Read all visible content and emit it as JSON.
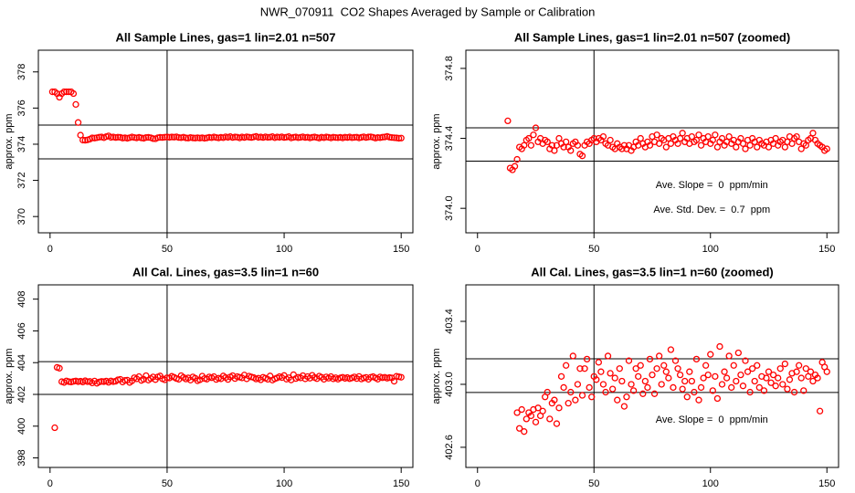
{
  "title": "NWR_070911  CO2 Shapes Averaged by Sample or Calibration",
  "chart_data": [
    {
      "type": "scatter",
      "title": "All Sample Lines, gas=1 lin=2.01 n=507",
      "ylabel": "approx. ppm",
      "color": "#ff0000",
      "xlim": [
        -5,
        155
      ],
      "ylim": [
        369.1,
        379.2
      ],
      "xticks": [
        0,
        50,
        100,
        150
      ],
      "yticks": [
        370,
        372,
        374,
        376,
        378
      ],
      "hlines": [
        375.06,
        373.19
      ],
      "vlines": [
        50
      ],
      "x": [
        1,
        2,
        3,
        4,
        5,
        6,
        7,
        8,
        9,
        10,
        11,
        12,
        13,
        14,
        15,
        16,
        17,
        18,
        19,
        20,
        21,
        22,
        23,
        24,
        25,
        26,
        27,
        28,
        29,
        30,
        31,
        32,
        33,
        34,
        35,
        36,
        37,
        38,
        39,
        40,
        41,
        42,
        43,
        44,
        45,
        46,
        47,
        48,
        49,
        50,
        51,
        52,
        53,
        54,
        55,
        56,
        57,
        58,
        59,
        60,
        61,
        62,
        63,
        64,
        65,
        66,
        67,
        68,
        69,
        70,
        71,
        72,
        73,
        74,
        75,
        76,
        77,
        78,
        79,
        80,
        81,
        82,
        83,
        84,
        85,
        86,
        87,
        88,
        89,
        90,
        91,
        92,
        93,
        94,
        95,
        96,
        97,
        98,
        99,
        100,
        101,
        102,
        103,
        104,
        105,
        106,
        107,
        108,
        109,
        110,
        111,
        112,
        113,
        114,
        115,
        116,
        117,
        118,
        119,
        120,
        121,
        122,
        123,
        124,
        125,
        126,
        127,
        128,
        129,
        130,
        131,
        132,
        133,
        134,
        135,
        136,
        137,
        138,
        139,
        140,
        141,
        142,
        143,
        144,
        145,
        146,
        147,
        148,
        149,
        150
      ],
      "values": [
        376.9,
        376.9,
        376.8,
        376.6,
        376.8,
        376.9,
        376.9,
        376.9,
        376.9,
        376.8,
        376.2,
        375.2,
        374.5,
        374.23,
        374.22,
        374.24,
        374.28,
        374.35,
        374.34,
        374.36,
        374.39,
        374.4,
        374.36,
        374.42,
        374.46,
        374.38,
        374.4,
        374.37,
        374.39,
        374.38,
        374.34,
        374.36,
        374.33,
        374.36,
        374.4,
        374.37,
        374.35,
        374.38,
        374.35,
        374.33,
        374.37,
        374.38,
        374.36,
        374.31,
        374.3,
        374.36,
        374.38,
        374.37,
        374.39,
        374.4,
        374.38,
        374.4,
        374.39,
        374.41,
        374.37,
        374.36,
        374.39,
        374.35,
        374.34,
        374.37,
        374.35,
        374.34,
        374.36,
        374.34,
        374.36,
        374.33,
        374.35,
        374.38,
        374.36,
        374.4,
        374.37,
        374.35,
        374.38,
        374.36,
        374.41,
        374.38,
        374.42,
        374.37,
        374.4,
        374.39,
        374.35,
        374.4,
        374.37,
        374.41,
        374.39,
        374.37,
        374.4,
        374.43,
        374.38,
        374.4,
        374.37,
        374.41,
        374.38,
        374.39,
        374.42,
        374.36,
        374.4,
        374.38,
        374.41,
        374.37,
        374.39,
        374.42,
        374.35,
        374.38,
        374.4,
        374.36,
        374.38,
        374.41,
        374.37,
        374.39,
        374.35,
        374.38,
        374.4,
        374.37,
        374.34,
        374.39,
        374.36,
        374.4,
        374.38,
        374.35,
        374.39,
        374.37,
        374.36,
        374.38,
        374.35,
        374.39,
        374.37,
        374.4,
        374.36,
        374.38,
        374.39,
        374.35,
        374.38,
        374.41,
        374.37,
        374.4,
        374.41,
        374.38,
        374.34,
        374.37,
        374.36,
        374.39,
        374.4,
        374.43,
        374.39,
        374.37,
        374.36,
        374.35,
        374.33,
        374.34
      ]
    },
    {
      "type": "scatter",
      "title": "All Sample Lines, gas=1 lin=2.01 n=507 (zoomed)",
      "ylabel": "approx. ppm",
      "color": "#ff0000",
      "xlim": [
        -5,
        155
      ],
      "ylim": [
        373.86,
        374.904
      ],
      "xticks": [
        0,
        50,
        100,
        150
      ],
      "yticks": [
        {
          "value": 374,
          "label": "374.0"
        },
        374.4,
        374.8
      ],
      "hlines": [
        374.46,
        374.27
      ],
      "vlines": [
        50
      ],
      "annotations": [
        "Ave. Slope =  0  ppm/min",
        "Ave. Std. Dev. =  0.7  ppm"
      ],
      "x": [
        13,
        14,
        15,
        16,
        17,
        18,
        19,
        20,
        21,
        22,
        23,
        24,
        25,
        26,
        27,
        28,
        29,
        30,
        31,
        32,
        33,
        34,
        35,
        36,
        37,
        38,
        39,
        40,
        41,
        42,
        43,
        44,
        45,
        46,
        47,
        48,
        49,
        50,
        51,
        52,
        53,
        54,
        55,
        56,
        57,
        58,
        59,
        60,
        61,
        62,
        63,
        64,
        65,
        66,
        67,
        68,
        69,
        70,
        71,
        72,
        73,
        74,
        75,
        76,
        77,
        78,
        79,
        80,
        81,
        82,
        83,
        84,
        85,
        86,
        87,
        88,
        89,
        90,
        91,
        92,
        93,
        94,
        95,
        96,
        97,
        98,
        99,
        100,
        101,
        102,
        103,
        104,
        105,
        106,
        107,
        108,
        109,
        110,
        111,
        112,
        113,
        114,
        115,
        116,
        117,
        118,
        119,
        120,
        121,
        122,
        123,
        124,
        125,
        126,
        127,
        128,
        129,
        130,
        131,
        132,
        133,
        134,
        135,
        136,
        137,
        138,
        139,
        140,
        141,
        142,
        143,
        144,
        145,
        146,
        147,
        148,
        149,
        150
      ],
      "values": [
        374.5,
        374.23,
        374.22,
        374.24,
        374.28,
        374.35,
        374.34,
        374.36,
        374.39,
        374.4,
        374.36,
        374.42,
        374.46,
        374.38,
        374.4,
        374.37,
        374.39,
        374.38,
        374.34,
        374.36,
        374.33,
        374.36,
        374.4,
        374.37,
        374.35,
        374.38,
        374.35,
        374.33,
        374.37,
        374.38,
        374.36,
        374.31,
        374.3,
        374.36,
        374.38,
        374.37,
        374.39,
        374.4,
        374.38,
        374.4,
        374.39,
        374.41,
        374.37,
        374.36,
        374.39,
        374.35,
        374.34,
        374.37,
        374.35,
        374.34,
        374.36,
        374.34,
        374.36,
        374.33,
        374.35,
        374.38,
        374.36,
        374.4,
        374.37,
        374.35,
        374.38,
        374.36,
        374.41,
        374.38,
        374.42,
        374.37,
        374.4,
        374.39,
        374.35,
        374.4,
        374.37,
        374.41,
        374.39,
        374.37,
        374.4,
        374.43,
        374.38,
        374.4,
        374.37,
        374.41,
        374.38,
        374.39,
        374.42,
        374.36,
        374.4,
        374.38,
        374.41,
        374.37,
        374.39,
        374.42,
        374.35,
        374.38,
        374.4,
        374.36,
        374.38,
        374.41,
        374.37,
        374.39,
        374.35,
        374.38,
        374.4,
        374.37,
        374.34,
        374.39,
        374.36,
        374.4,
        374.38,
        374.35,
        374.39,
        374.37,
        374.36,
        374.38,
        374.35,
        374.39,
        374.37,
        374.4,
        374.36,
        374.38,
        374.39,
        374.35,
        374.38,
        374.41,
        374.37,
        374.4,
        374.41,
        374.38,
        374.34,
        374.37,
        374.36,
        374.39,
        374.4,
        374.43,
        374.39,
        374.37,
        374.36,
        374.35,
        374.33,
        374.34
      ]
    },
    {
      "type": "scatter",
      "title": "All Cal. Lines, gas=3.5 lin=1 n=60",
      "ylabel": "approx. ppm",
      "color": "#ff0000",
      "xlim": [
        -5,
        155
      ],
      "ylim": [
        397.4,
        408.9
      ],
      "xticks": [
        0,
        50,
        100,
        150
      ],
      "yticks": [
        398,
        400,
        402,
        404,
        406,
        408
      ],
      "hlines": [
        404.06,
        402.0
      ],
      "vlines": [
        50
      ],
      "x": [
        2,
        3,
        4,
        5,
        6,
        7,
        8,
        9,
        10,
        11,
        12,
        13,
        14,
        15,
        16,
        17,
        18,
        19,
        20,
        21,
        22,
        23,
        24,
        25,
        26,
        27,
        28,
        29,
        30,
        31,
        32,
        33,
        34,
        35,
        36,
        37,
        38,
        39,
        40,
        41,
        42,
        43,
        44,
        45,
        46,
        47,
        48,
        49,
        50,
        51,
        52,
        53,
        54,
        55,
        56,
        57,
        58,
        59,
        60,
        61,
        62,
        63,
        64,
        65,
        66,
        67,
        68,
        69,
        70,
        71,
        72,
        73,
        74,
        75,
        76,
        77,
        78,
        79,
        80,
        81,
        82,
        83,
        84,
        85,
        86,
        87,
        88,
        89,
        90,
        91,
        92,
        93,
        94,
        95,
        96,
        97,
        98,
        99,
        100,
        101,
        102,
        103,
        104,
        105,
        106,
        107,
        108,
        109,
        110,
        111,
        112,
        113,
        114,
        115,
        116,
        117,
        118,
        119,
        120,
        121,
        122,
        123,
        124,
        125,
        126,
        127,
        128,
        129,
        130,
        131,
        132,
        133,
        134,
        135,
        136,
        137,
        138,
        139,
        140,
        141,
        142,
        143,
        144,
        145,
        146,
        147,
        148,
        149,
        150
      ],
      "values": [
        399.9,
        403.7,
        403.65,
        402.8,
        402.75,
        402.85,
        402.8,
        402.78,
        402.82,
        402.85,
        402.8,
        402.83,
        402.78,
        402.86,
        402.8,
        402.82,
        402.72,
        402.84,
        402.7,
        402.78,
        402.82,
        402.8,
        402.84,
        402.76,
        402.85,
        402.8,
        402.83,
        402.92,
        402.95,
        402.78,
        402.88,
        402.9,
        402.75,
        402.85,
        403.05,
        402.98,
        403.12,
        402.88,
        402.95,
        403.18,
        402.9,
        403.0,
        403.1,
        402.93,
        403.1,
        403.16,
        402.98,
        402.92,
        403.05,
        403.03,
        403.14,
        403.08,
        403.0,
        402.95,
        403.18,
        403.07,
        402.97,
        403.04,
        402.9,
        403.1,
        403.02,
        402.86,
        402.92,
        403.15,
        403.0,
        402.96,
        403.1,
        403.05,
        403.12,
        402.94,
        403.02,
        402.98,
        403.16,
        403.06,
        402.94,
        403.1,
        403.18,
        403.0,
        403.12,
        403.08,
        403.04,
        403.22,
        402.98,
        403.15,
        403.1,
        403.06,
        402.97,
        403.02,
        402.92,
        403.08,
        403.02,
        402.95,
        403.16,
        402.9,
        402.98,
        403.04,
        403.12,
        403.06,
        403.19,
        402.96,
        403.05,
        402.91,
        403.24,
        403.0,
        403.08,
        403.04,
        403.18,
        402.98,
        403.12,
        403.02,
        403.2,
        403.06,
        402.99,
        403.15,
        403.08,
        402.95,
        403.1,
        403.02,
        403.12,
        402.98,
        403.05,
        402.96,
        403.04,
        403.08,
        403.01,
        403.06,
        402.99,
        403.04,
        403.1,
        403.0,
        403.13,
        402.97,
        403.03,
        403.07,
        402.95,
        403.08,
        403.12,
        403.04,
        402.96,
        403.1,
        403.05,
        403.08,
        403.02,
        403.06,
        403.04,
        402.83,
        403.14,
        403.11,
        403.08
      ]
    },
    {
      "type": "scatter",
      "title": "All Cal. Lines, gas=3.5 lin=1 n=60 (zoomed)",
      "ylabel": "approx. ppm",
      "color": "#ff0000",
      "xlim": [
        -5,
        155
      ],
      "ylim": [
        402.472,
        403.632
      ],
      "xticks": [
        0,
        50,
        100,
        150
      ],
      "yticks": [
        402.6,
        {
          "value": 403,
          "label": "403.0"
        },
        403.4
      ],
      "hlines": [
        403.162,
        402.948
      ],
      "vlines": [
        50
      ],
      "annotations": [
        "Ave. Slope =  0  ppm/min"
      ],
      "x": [
        17,
        18,
        19,
        20,
        21,
        22,
        23,
        24,
        25,
        26,
        27,
        28,
        29,
        30,
        31,
        32,
        33,
        34,
        35,
        36,
        37,
        38,
        39,
        40,
        41,
        42,
        43,
        44,
        45,
        46,
        47,
        48,
        49,
        50,
        51,
        52,
        53,
        54,
        55,
        56,
        57,
        58,
        59,
        60,
        61,
        62,
        63,
        64,
        65,
        66,
        67,
        68,
        69,
        70,
        71,
        72,
        73,
        74,
        75,
        76,
        77,
        78,
        79,
        80,
        81,
        82,
        83,
        84,
        85,
        86,
        87,
        88,
        89,
        90,
        91,
        92,
        93,
        94,
        95,
        96,
        97,
        98,
        99,
        100,
        101,
        102,
        103,
        104,
        105,
        106,
        107,
        108,
        109,
        110,
        111,
        112,
        113,
        114,
        115,
        116,
        117,
        118,
        119,
        120,
        121,
        122,
        123,
        124,
        125,
        126,
        127,
        128,
        129,
        130,
        131,
        132,
        133,
        134,
        135,
        136,
        137,
        138,
        139,
        140,
        141,
        142,
        143,
        144,
        145,
        146,
        147,
        148,
        149,
        150
      ],
      "values": [
        402.82,
        402.72,
        402.84,
        402.7,
        402.78,
        402.82,
        402.8,
        402.84,
        402.76,
        402.85,
        402.8,
        402.83,
        402.92,
        402.95,
        402.78,
        402.88,
        402.9,
        402.75,
        402.85,
        403.05,
        402.98,
        403.12,
        402.88,
        402.95,
        403.18,
        402.9,
        403.0,
        403.1,
        402.93,
        403.1,
        403.16,
        402.98,
        402.92,
        403.05,
        403.03,
        403.14,
        403.08,
        403.0,
        402.95,
        403.18,
        403.07,
        402.97,
        403.04,
        402.9,
        403.1,
        403.02,
        402.86,
        402.92,
        403.15,
        403.0,
        402.96,
        403.1,
        403.05,
        403.12,
        402.94,
        403.02,
        402.98,
        403.16,
        403.06,
        402.94,
        403.1,
        403.18,
        403.0,
        403.12,
        403.08,
        403.04,
        403.22,
        402.98,
        403.15,
        403.1,
        403.06,
        402.97,
        403.02,
        402.92,
        403.08,
        403.02,
        402.95,
        403.16,
        402.9,
        402.98,
        403.04,
        403.12,
        403.06,
        403.19,
        402.96,
        403.05,
        402.91,
        403.24,
        403.0,
        403.08,
        403.04,
        403.18,
        402.98,
        403.12,
        403.02,
        403.2,
        403.06,
        402.99,
        403.15,
        403.08,
        402.95,
        403.1,
        403.02,
        403.12,
        402.98,
        403.05,
        402.96,
        403.04,
        403.08,
        403.01,
        403.06,
        402.99,
        403.04,
        403.1,
        403.0,
        403.13,
        402.97,
        403.03,
        403.07,
        402.95,
        403.08,
        403.12,
        403.04,
        402.96,
        403.1,
        403.05,
        403.08,
        403.02,
        403.06,
        403.04,
        402.83,
        403.14,
        403.11,
        403.08
      ]
    }
  ]
}
